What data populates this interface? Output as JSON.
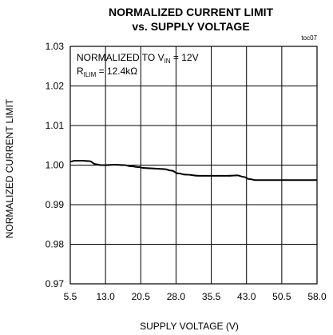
{
  "chart_data": {
    "type": "line",
    "title_line1": "NORMALIZED CURRENT LIMIT",
    "title_line2": "vs. SUPPLY VOLTAGE",
    "figure_id": "toc07",
    "xlabel": "SUPPLY VOLTAGE (V)",
    "ylabel": "NORMALIZED CURRENT LIMIT",
    "xlim": [
      5.5,
      58.0
    ],
    "ylim": [
      0.97,
      1.03
    ],
    "xticks": [
      "5.5",
      "13.0",
      "20.5",
      "28.0",
      "35.5",
      "43.0",
      "50.5",
      "58.0"
    ],
    "yticks": [
      "0.97",
      "0.98",
      "0.99",
      "1.00",
      "1.01",
      "1.02",
      "1.03"
    ],
    "grid": true,
    "annotation": {
      "line1_main": "NORMALIZED TO V",
      "line1_sub": "IN",
      "line1_tail": " = 12V",
      "line2_main": "R",
      "line2_sub": "ILIM",
      "line2_tail": " = 12.4kΩ"
    },
    "series": [
      {
        "x": [
          5.5,
          6.5,
          8.0,
          9.5,
          11.0,
          12.0,
          13.0,
          15.0,
          17.0,
          18.5,
          20.0,
          21.0,
          22.5,
          24.0,
          25.5,
          27.0,
          28.5,
          30.0,
          33.0,
          36.0,
          39.0,
          41.0,
          42.5,
          43.5,
          45.0,
          48.0,
          52.0,
          55.0,
          58.0
        ],
        "y": [
          1.0009,
          1.0011,
          1.0011,
          1.001,
          1.0002,
          1.0,
          1.0,
          1.0001,
          1.0,
          0.9997,
          0.9995,
          0.9993,
          0.9992,
          0.9991,
          0.999,
          0.9986,
          0.9979,
          0.9976,
          0.9973,
          0.9973,
          0.9973,
          0.9974,
          0.997,
          0.9965,
          0.9962,
          0.9962,
          0.9962,
          0.9962,
          0.9962
        ]
      }
    ]
  }
}
